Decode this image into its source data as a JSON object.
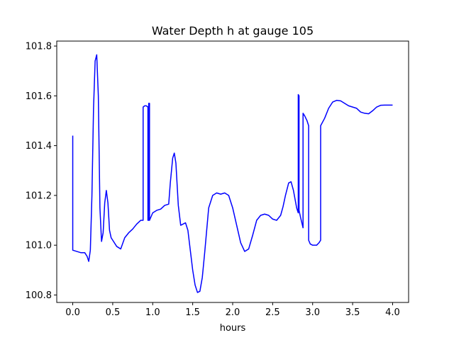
{
  "chart_data": {
    "type": "line",
    "title": "Water Depth h at gauge 105",
    "xlabel": "hours",
    "ylabel": "",
    "xlim": [
      -0.2,
      4.2
    ],
    "ylim": [
      100.77,
      101.82
    ],
    "xticks": [
      0.0,
      0.5,
      1.0,
      1.5,
      2.0,
      2.5,
      3.0,
      3.5,
      4.0
    ],
    "xtick_labels": [
      "0.0",
      "0.5",
      "1.0",
      "1.5",
      "2.0",
      "2.5",
      "3.0",
      "3.5",
      "4.0"
    ],
    "yticks": [
      100.8,
      101.0,
      101.2,
      101.4,
      101.6,
      101.8
    ],
    "ytick_labels": [
      "100.8",
      "101.0",
      "101.2",
      "101.4",
      "101.6",
      "101.8"
    ],
    "grid": false,
    "series": [
      {
        "color": "#0000ff",
        "x": [
          0.0,
          0.0,
          0.05,
          0.1,
          0.15,
          0.18,
          0.2,
          0.22,
          0.24,
          0.26,
          0.28,
          0.3,
          0.32,
          0.34,
          0.36,
          0.38,
          0.4,
          0.42,
          0.44,
          0.46,
          0.48,
          0.5,
          0.55,
          0.6,
          0.65,
          0.7,
          0.75,
          0.8,
          0.85,
          0.88,
          0.88,
          0.9,
          0.92,
          0.94,
          0.94,
          0.95,
          0.95,
          0.96,
          0.96,
          0.98,
          1.0,
          1.05,
          1.1,
          1.15,
          1.2,
          1.22,
          1.25,
          1.27,
          1.29,
          1.32,
          1.35,
          1.38,
          1.41,
          1.44,
          1.47,
          1.5,
          1.53,
          1.56,
          1.59,
          1.62,
          1.65,
          1.7,
          1.75,
          1.8,
          1.85,
          1.9,
          1.95,
          2.0,
          2.05,
          2.1,
          2.15,
          2.2,
          2.25,
          2.3,
          2.35,
          2.4,
          2.45,
          2.5,
          2.55,
          2.6,
          2.63,
          2.66,
          2.7,
          2.73,
          2.76,
          2.8,
          2.82,
          2.82,
          2.83,
          2.83,
          2.85,
          2.88,
          2.88,
          2.9,
          2.93,
          2.95,
          2.95,
          2.97,
          3.0,
          3.05,
          3.08,
          3.1,
          3.1,
          3.15,
          3.2,
          3.25,
          3.3,
          3.35,
          3.4,
          3.45,
          3.5,
          3.55,
          3.6,
          3.65,
          3.7,
          3.75,
          3.8,
          3.85,
          3.9,
          3.95,
          4.0
        ],
        "y": [
          101.44,
          100.98,
          100.975,
          100.97,
          100.97,
          100.955,
          100.935,
          100.98,
          101.2,
          101.55,
          101.74,
          101.765,
          101.6,
          101.15,
          101.015,
          101.05,
          101.17,
          101.22,
          101.17,
          101.06,
          101.03,
          101.02,
          100.995,
          100.985,
          101.03,
          101.05,
          101.065,
          101.085,
          101.1,
          101.1,
          101.555,
          101.56,
          101.56,
          101.555,
          101.1,
          101.1,
          101.57,
          101.57,
          101.1,
          101.115,
          101.13,
          101.14,
          101.145,
          101.16,
          101.165,
          101.25,
          101.35,
          101.37,
          101.33,
          101.16,
          101.08,
          101.085,
          101.09,
          101.06,
          100.98,
          100.9,
          100.84,
          100.81,
          100.815,
          100.87,
          100.97,
          101.15,
          101.2,
          101.21,
          101.205,
          101.21,
          101.2,
          101.15,
          101.08,
          101.01,
          100.975,
          100.985,
          101.04,
          101.1,
          101.12,
          101.125,
          101.12,
          101.105,
          101.1,
          101.12,
          101.155,
          101.2,
          101.25,
          101.255,
          101.22,
          101.15,
          101.13,
          101.605,
          101.6,
          101.14,
          101.11,
          101.07,
          101.53,
          101.52,
          101.5,
          101.48,
          101.02,
          101.005,
          101.0,
          101.0,
          101.01,
          101.02,
          101.48,
          101.51,
          101.55,
          101.575,
          101.582,
          101.58,
          101.57,
          101.56,
          101.555,
          101.55,
          101.535,
          101.53,
          101.528,
          101.54,
          101.555,
          101.562,
          101.563,
          101.563,
          101.563
        ]
      }
    ]
  }
}
